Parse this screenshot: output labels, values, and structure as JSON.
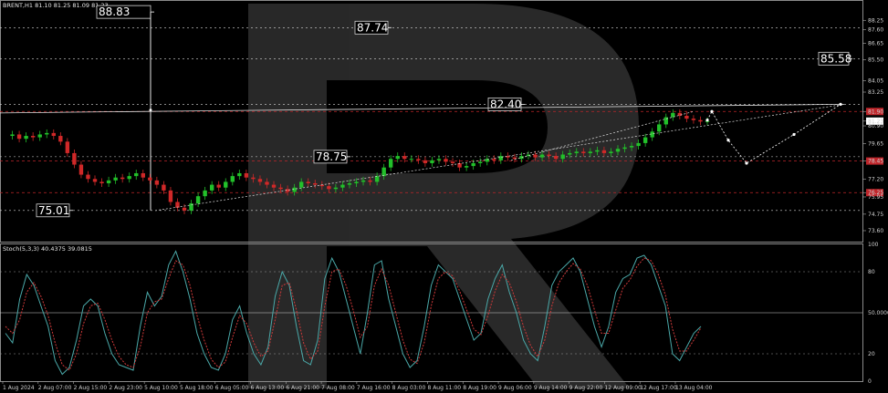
{
  "header": {
    "symbol_line": "BRENT,H1  81.10 81.25 81.09 81.23"
  },
  "stoch": {
    "label": "Stoch(5,3,3) 40.4375 39.0815"
  },
  "chart_data": [
    {
      "type": "candlestick",
      "title": "BRENT,H1",
      "ylim": [
        72.9,
        89.6
      ],
      "y_ticks": [
        "88.25",
        "87.60",
        "86.65",
        "85.50",
        "84.05",
        "83.25",
        "81.90",
        "81.23",
        "80.90",
        "79.65",
        "78.45",
        "77.20",
        "76.25",
        "75.95",
        "74.75",
        "73.60"
      ],
      "highlighted_ticks": [
        "81.90",
        "78.45",
        "76.25"
      ],
      "current_price_tag": "81.23",
      "x_labels": [
        "1 Aug 2024",
        "2 Aug 07:00",
        "2 Aug 15:00",
        "2 Aug 23:00",
        "5 Aug 10:00",
        "5 Aug 18:00",
        "6 Aug 05:00",
        "6 Aug 13:00",
        "6 Aug 21:00",
        "7 Aug 08:00",
        "7 Aug 16:00",
        "8 Aug 03:00",
        "8 Aug 11:00",
        "8 Aug 19:00",
        "9 Aug 06:00",
        "9 Aug 14:00",
        "9 Aug 22:00",
        "12 Aug 09:00",
        "12 Aug 17:00",
        "13 Aug 04:00"
      ],
      "levels": [
        {
          "label": "88.83",
          "value": 88.83
        },
        {
          "label": "87.74",
          "value": 87.74
        },
        {
          "label": "85.58",
          "value": 85.58
        },
        {
          "label": "82.40",
          "value": 82.4
        },
        {
          "label": "78.75",
          "value": 78.75
        },
        {
          "label": "75.01",
          "value": 75.01
        }
      ],
      "price_path": [
        80.2,
        80.3,
        80.0,
        80.2,
        80.1,
        80.3,
        80.4,
        80.2,
        79.8,
        79.0,
        78.2,
        77.5,
        77.2,
        77.0,
        76.9,
        77.1,
        77.3,
        77.2,
        77.4,
        77.6,
        77.3,
        77.1,
        76.8,
        76.4,
        75.6,
        75.2,
        75.0,
        75.5,
        76.0,
        76.4,
        76.8,
        76.6,
        77.0,
        77.4,
        77.6,
        77.3,
        77.2,
        77.0,
        76.8,
        76.6,
        76.5,
        76.3,
        76.6,
        77.0,
        76.9,
        76.8,
        76.7,
        76.5,
        76.6,
        76.8,
        76.9,
        77.0,
        77.1,
        77.0,
        77.4,
        78.0,
        78.6,
        78.8,
        78.6,
        78.6,
        78.5,
        78.3,
        78.5,
        78.6,
        78.4,
        78.3,
        78.0,
        78.1,
        78.3,
        78.4,
        78.6,
        78.5,
        78.8,
        78.7,
        78.6,
        78.8,
        78.9,
        78.7,
        78.9,
        78.8,
        78.6,
        78.9,
        79.0,
        79.1,
        79.0,
        79.1,
        79.2,
        79.0,
        79.1,
        79.3,
        79.4,
        79.5,
        79.7,
        80.1,
        80.5,
        81.0,
        81.5,
        81.8,
        81.6,
        81.4,
        81.3,
        81.2,
        81.23
      ],
      "forecast_path": [
        {
          "time": "13 Aug 05:00",
          "value": 81.3
        },
        {
          "time": "13 Aug 09:00",
          "value": 81.9
        },
        {
          "time": "13 Aug 14:00",
          "value": 79.9
        },
        {
          "time": "13 Aug 19:00",
          "value": 78.3
        },
        {
          "time": "14 Aug 03:00",
          "value": 80.3
        },
        {
          "time": "14 Aug 10:00",
          "value": 82.4
        }
      ]
    },
    {
      "type": "line",
      "title": "Stoch(5,3,3) 40.4375 39.0815",
      "ylim": [
        0,
        100
      ],
      "y_ticks": [
        "100",
        "80",
        "50.0000",
        "20",
        "0"
      ],
      "series": [
        {
          "name": "Stoch(5,3,3)",
          "color": "#4aa8a8",
          "values": [
            35,
            28,
            60,
            78,
            70,
            55,
            40,
            15,
            5,
            10,
            30,
            55,
            60,
            55,
            35,
            20,
            12,
            10,
            8,
            40,
            65,
            55,
            62,
            85,
            95,
            80,
            60,
            35,
            20,
            10,
            8,
            20,
            45,
            55,
            35,
            20,
            12,
            25,
            62,
            80,
            70,
            40,
            15,
            12,
            30,
            75,
            90,
            80,
            60,
            40,
            20,
            50,
            85,
            88,
            60,
            40,
            20,
            10,
            15,
            40,
            70,
            85,
            80,
            75,
            60,
            45,
            30,
            35,
            60,
            75,
            85,
            65,
            50,
            30,
            20,
            15,
            40,
            70,
            80,
            85,
            90,
            80,
            60,
            40,
            25,
            40,
            65,
            75,
            78,
            90,
            92,
            85,
            70,
            55,
            20,
            15,
            25,
            35,
            40
          ]
        },
        {
          "name": "signal",
          "color": "#d03a3a",
          "values": [
            40,
            35,
            45,
            65,
            72,
            62,
            48,
            28,
            12,
            8,
            20,
            42,
            55,
            57,
            45,
            30,
            18,
            12,
            10,
            25,
            50,
            58,
            60,
            75,
            88,
            85,
            70,
            48,
            30,
            16,
            10,
            14,
            32,
            48,
            42,
            28,
            18,
            22,
            45,
            70,
            72,
            52,
            28,
            16,
            22,
            55,
            80,
            82,
            70,
            52,
            32,
            40,
            70,
            82,
            70,
            50,
            30,
            16,
            13,
            28,
            55,
            75,
            80,
            77,
            66,
            52,
            38,
            34,
            48,
            66,
            78,
            72,
            58,
            40,
            26,
            18,
            30,
            55,
            72,
            80,
            86,
            82,
            70,
            52,
            35,
            35,
            52,
            68,
            74,
            84,
            90,
            88,
            78,
            63,
            38,
            22,
            22,
            30,
            39
          ]
        }
      ],
      "guide_levels": [
        80,
        50,
        20
      ]
    }
  ]
}
